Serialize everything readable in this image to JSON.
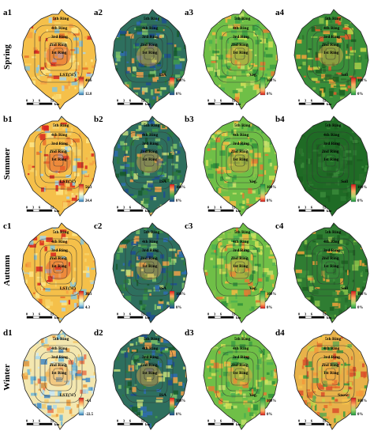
{
  "seasons": [
    "Spring",
    "Summer",
    "Autumn",
    "Winter"
  ],
  "rings": [
    "5th Ring",
    "4th Ring",
    "3rd Ring",
    "2nd Ring",
    "1st Ring"
  ],
  "scale_bar": {
    "ticks": [
      "0",
      "3",
      "6",
      "12"
    ],
    "unit": "km"
  },
  "rows": [
    {
      "season": "Spring",
      "panels": [
        {
          "id": "a1",
          "type": "lst",
          "legend_title": "LST(°C)",
          "max": "40.6",
          "min": "12.8"
        },
        {
          "id": "a2",
          "type": "isa",
          "legend_title": "ISA",
          "max": "100%",
          "min": "0%"
        },
        {
          "id": "a3",
          "type": "veg",
          "legend_title": "Veg.",
          "max": "100%",
          "min": "0%"
        },
        {
          "id": "a4",
          "type": "soil",
          "legend_title": "Soil",
          "max": "100%",
          "min": "0%"
        }
      ]
    },
    {
      "season": "Summer",
      "panels": [
        {
          "id": "b1",
          "type": "lst",
          "legend_title": "LST(°C)",
          "max": "56.3",
          "min": "24.4"
        },
        {
          "id": "b2",
          "type": "isa",
          "legend_title": "ISA",
          "max": "100%",
          "min": "0%"
        },
        {
          "id": "b3",
          "type": "veg",
          "legend_title": "Veg.",
          "max": "100%",
          "min": "0%"
        },
        {
          "id": "b4",
          "type": "soil2",
          "legend_title": "Soil",
          "max": "100%",
          "min": "0%"
        }
      ]
    },
    {
      "season": "Autumn",
      "panels": [
        {
          "id": "c1",
          "type": "lst",
          "legend_title": "LST(°C)",
          "max": "36.1",
          "min": "4.3"
        },
        {
          "id": "c2",
          "type": "isa",
          "legend_title": "ISA",
          "max": "100%",
          "min": "0%"
        },
        {
          "id": "c3",
          "type": "veg",
          "legend_title": "Veg.",
          "max": "100%",
          "min": "0%"
        },
        {
          "id": "c4",
          "type": "soil3",
          "legend_title": "Soil",
          "max": "100%",
          "min": "0%"
        }
      ]
    },
    {
      "season": "Winter",
      "panels": [
        {
          "id": "d1",
          "type": "lstw",
          "legend_title": "LST(°C)",
          "max": "-4.1",
          "min": "-22.5"
        },
        {
          "id": "d2",
          "type": "isa",
          "legend_title": "ISA",
          "max": "100%",
          "min": "0%"
        },
        {
          "id": "d3",
          "type": "veg",
          "legend_title": "Veg.",
          "max": "100%",
          "min": "0%"
        },
        {
          "id": "d4",
          "type": "snow",
          "legend_title": "Snow",
          "max": "100%",
          "min": "0%"
        }
      ]
    }
  ]
}
